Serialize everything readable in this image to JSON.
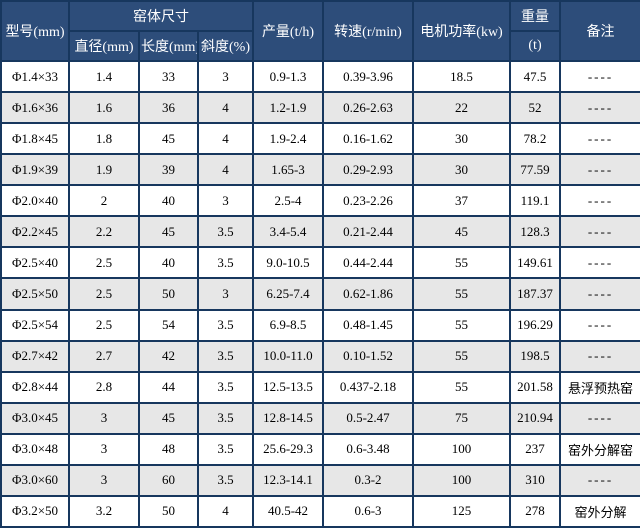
{
  "table": {
    "header": {
      "model": "型号(mm)",
      "kiln_size": "窑体尺寸",
      "diameter": "直径(mm)",
      "length": "长度(mm)",
      "slope": "斜度(%)",
      "output": "产量(t/h)",
      "speed": "转速(r/min)",
      "motor_power": "电机功率(kw)",
      "weight": "重量",
      "weight_unit": "(t)",
      "remark": "备注"
    },
    "rows": [
      {
        "model": "Φ1.4×33",
        "diameter": "1.4",
        "length": "33",
        "slope": "3",
        "output": "0.9-1.3",
        "speed": "0.39-3.96",
        "power": "18.5",
        "weight": "47.5",
        "remark": "----"
      },
      {
        "model": "Φ1.6×36",
        "diameter": "1.6",
        "length": "36",
        "slope": "4",
        "output": "1.2-1.9",
        "speed": "0.26-2.63",
        "power": "22",
        "weight": "52",
        "remark": "----"
      },
      {
        "model": "Φ1.8×45",
        "diameter": "1.8",
        "length": "45",
        "slope": "4",
        "output": "1.9-2.4",
        "speed": "0.16-1.62",
        "power": "30",
        "weight": "78.2",
        "remark": "----"
      },
      {
        "model": "Φ1.9×39",
        "diameter": "1.9",
        "length": "39",
        "slope": "4",
        "output": "1.65-3",
        "speed": "0.29-2.93",
        "power": "30",
        "weight": "77.59",
        "remark": "----"
      },
      {
        "model": "Φ2.0×40",
        "diameter": "2",
        "length": "40",
        "slope": "3",
        "output": "2.5-4",
        "speed": "0.23-2.26",
        "power": "37",
        "weight": "119.1",
        "remark": "----"
      },
      {
        "model": "Φ2.2×45",
        "diameter": "2.2",
        "length": "45",
        "slope": "3.5",
        "output": "3.4-5.4",
        "speed": "0.21-2.44",
        "power": "45",
        "weight": "128.3",
        "remark": "----"
      },
      {
        "model": "Φ2.5×40",
        "diameter": "2.5",
        "length": "40",
        "slope": "3.5",
        "output": "9.0-10.5",
        "speed": "0.44-2.44",
        "power": "55",
        "weight": "149.61",
        "remark": "----"
      },
      {
        "model": "Φ2.5×50",
        "diameter": "2.5",
        "length": "50",
        "slope": "3",
        "output": "6.25-7.4",
        "speed": "0.62-1.86",
        "power": "55",
        "weight": "187.37",
        "remark": "----"
      },
      {
        "model": "Φ2.5×54",
        "diameter": "2.5",
        "length": "54",
        "slope": "3.5",
        "output": "6.9-8.5",
        "speed": "0.48-1.45",
        "power": "55",
        "weight": "196.29",
        "remark": "----"
      },
      {
        "model": "Φ2.7×42",
        "diameter": "2.7",
        "length": "42",
        "slope": "3.5",
        "output": "10.0-11.0",
        "speed": "0.10-1.52",
        "power": "55",
        "weight": "198.5",
        "remark": "----"
      },
      {
        "model": "Φ2.8×44",
        "diameter": "2.8",
        "length": "44",
        "slope": "3.5",
        "output": "12.5-13.5",
        "speed": "0.437-2.18",
        "power": "55",
        "weight": "201.58",
        "remark": "悬浮预热窑"
      },
      {
        "model": "Φ3.0×45",
        "diameter": "3",
        "length": "45",
        "slope": "3.5",
        "output": "12.8-14.5",
        "speed": "0.5-2.47",
        "power": "75",
        "weight": "210.94",
        "remark": "----"
      },
      {
        "model": "Φ3.0×48",
        "diameter": "3",
        "length": "48",
        "slope": "3.5",
        "output": "25.6-29.3",
        "speed": "0.6-3.48",
        "power": "100",
        "weight": "237",
        "remark": "窑外分解窑"
      },
      {
        "model": "Φ3.0×60",
        "diameter": "3",
        "length": "60",
        "slope": "3.5",
        "output": "12.3-14.1",
        "speed": "0.3-2",
        "power": "100",
        "weight": "310",
        "remark": "----"
      },
      {
        "model": "Φ3.2×50",
        "diameter": "3.2",
        "length": "50",
        "slope": "4",
        "output": "40.5-42",
        "speed": "0.6-3",
        "power": "125",
        "weight": "278",
        "remark": "窑外分解"
      }
    ]
  },
  "chart_data": {
    "type": "table",
    "columns": [
      "型号(mm)",
      "直径(mm)",
      "长度(mm)",
      "斜度(%)",
      "产量(t/h)",
      "转速(r/min)",
      "电机功率(kw)",
      "重量(t)",
      "备注"
    ],
    "rows": [
      [
        "Φ1.4×33",
        "1.4",
        "33",
        "3",
        "0.9-1.3",
        "0.39-3.96",
        "18.5",
        "47.5",
        "----"
      ],
      [
        "Φ1.6×36",
        "1.6",
        "36",
        "4",
        "1.2-1.9",
        "0.26-2.63",
        "22",
        "52",
        "----"
      ],
      [
        "Φ1.8×45",
        "1.8",
        "45",
        "4",
        "1.9-2.4",
        "0.16-1.62",
        "30",
        "78.2",
        "----"
      ],
      [
        "Φ1.9×39",
        "1.9",
        "39",
        "4",
        "1.65-3",
        "0.29-2.93",
        "30",
        "77.59",
        "----"
      ],
      [
        "Φ2.0×40",
        "2",
        "40",
        "3",
        "2.5-4",
        "0.23-2.26",
        "37",
        "119.1",
        "----"
      ],
      [
        "Φ2.2×45",
        "2.2",
        "45",
        "3.5",
        "3.4-5.4",
        "0.21-2.44",
        "45",
        "128.3",
        "----"
      ],
      [
        "Φ2.5×40",
        "2.5",
        "40",
        "3.5",
        "9.0-10.5",
        "0.44-2.44",
        "55",
        "149.61",
        "----"
      ],
      [
        "Φ2.5×50",
        "2.5",
        "50",
        "3",
        "6.25-7.4",
        "0.62-1.86",
        "55",
        "187.37",
        "----"
      ],
      [
        "Φ2.5×54",
        "2.5",
        "54",
        "3.5",
        "6.9-8.5",
        "0.48-1.45",
        "55",
        "196.29",
        "----"
      ],
      [
        "Φ2.7×42",
        "2.7",
        "42",
        "3.5",
        "10.0-11.0",
        "0.10-1.52",
        "55",
        "198.5",
        "----"
      ],
      [
        "Φ2.8×44",
        "2.8",
        "44",
        "3.5",
        "12.5-13.5",
        "0.437-2.18",
        "55",
        "201.58",
        "悬浮预热窑"
      ],
      [
        "Φ3.0×45",
        "3",
        "45",
        "3.5",
        "12.8-14.5",
        "0.5-2.47",
        "75",
        "210.94",
        "----"
      ],
      [
        "Φ3.0×48",
        "3",
        "48",
        "3.5",
        "25.6-29.3",
        "0.6-3.48",
        "100",
        "237",
        "窑外分解窑"
      ],
      [
        "Φ3.0×60",
        "3",
        "60",
        "3.5",
        "12.3-14.1",
        "0.3-2",
        "100",
        "310",
        "----"
      ],
      [
        "Φ3.2×50",
        "3.2",
        "50",
        "4",
        "40.5-42",
        "0.6-3",
        "125",
        "278",
        "窑外分解"
      ]
    ]
  },
  "colors": {
    "border": "#17375E",
    "header_bg": "#2D4D7A",
    "alt_row_bg": "#E7E7E7",
    "row_bg": "#FFFFFF",
    "header_text": "#FFFFFF",
    "body_text": "#000000"
  }
}
